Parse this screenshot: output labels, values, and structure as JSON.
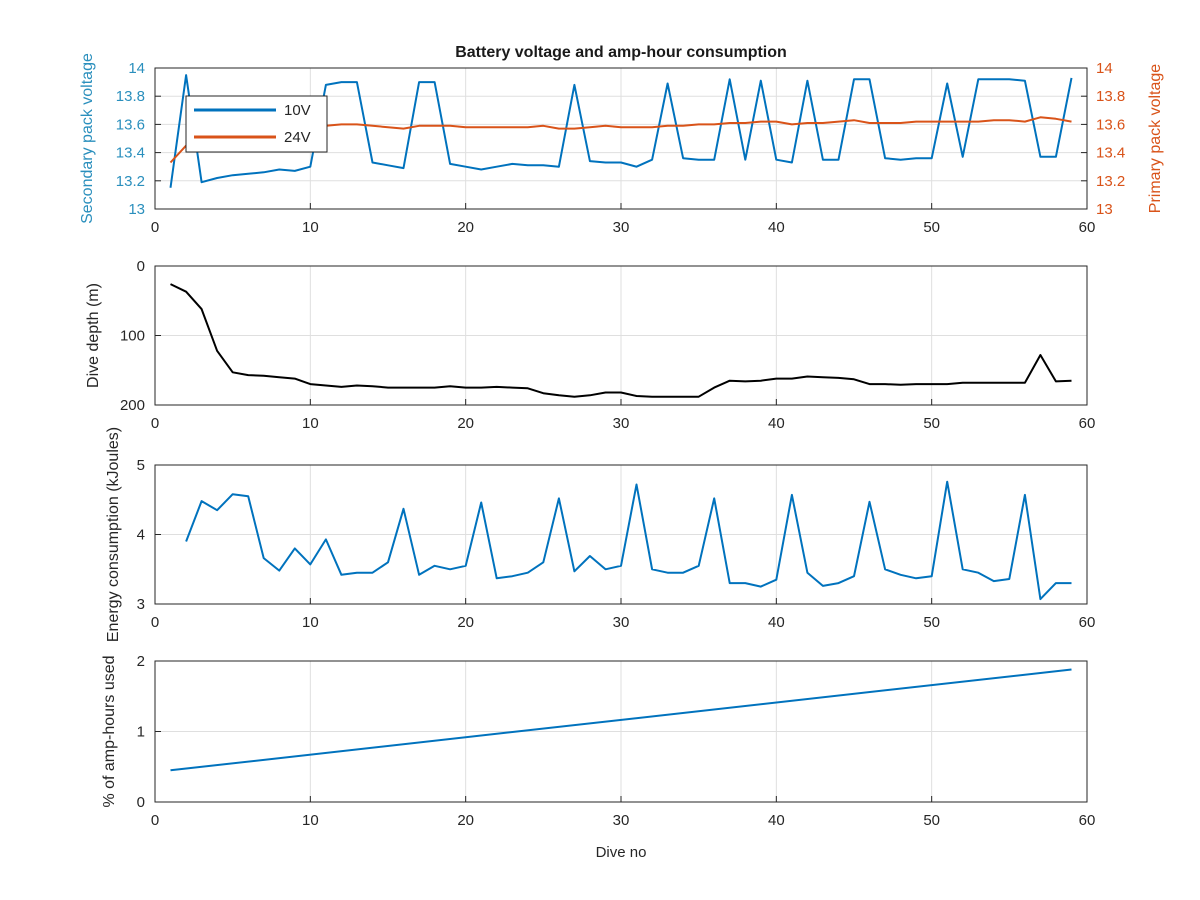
{
  "chart_data": [
    {
      "type": "line",
      "title": "Battery voltage and amp-hour consumption",
      "xlabel": "",
      "ylabel": "Secondary pack voltage",
      "y2label": "Primary pack voltage",
      "xlim": [
        0,
        60
      ],
      "ylim": [
        13,
        14
      ],
      "y2lim": [
        13,
        14
      ],
      "xticks": [
        "0",
        "10",
        "20",
        "30",
        "40",
        "50",
        "60"
      ],
      "yticks": [
        "13",
        "13.2",
        "13.4",
        "13.6",
        "13.8",
        "14"
      ],
      "y2ticks": [
        "13",
        "13.2",
        "13.4",
        "13.6",
        "13.8",
        "14"
      ],
      "grid": true,
      "legend": "top-left",
      "colors": {
        "left_axis": "#2a8fbd",
        "right_axis": "#d95319"
      },
      "series": [
        {
          "name": "10V",
          "axis": "left",
          "color": "#0072bd",
          "x": [
            1,
            2,
            3,
            4,
            5,
            6,
            7,
            8,
            9,
            10,
            11,
            12,
            13,
            14,
            15,
            16,
            17,
            18,
            19,
            20,
            21,
            22,
            23,
            24,
            25,
            26,
            27,
            28,
            29,
            30,
            31,
            32,
            33,
            34,
            35,
            36,
            37,
            38,
            39,
            40,
            41,
            42,
            43,
            44,
            45,
            46,
            47,
            48,
            49,
            50,
            51,
            52,
            53,
            54,
            55,
            56,
            57,
            58,
            59
          ],
          "y": [
            13.15,
            13.95,
            13.19,
            13.22,
            13.24,
            13.25,
            13.26,
            13.28,
            13.27,
            13.3,
            13.88,
            13.9,
            13.9,
            13.33,
            13.31,
            13.29,
            13.9,
            13.9,
            13.32,
            13.3,
            13.28,
            13.3,
            13.32,
            13.31,
            13.31,
            13.3,
            13.88,
            13.34,
            13.33,
            13.33,
            13.3,
            13.35,
            13.89,
            13.36,
            13.35,
            13.35,
            13.92,
            13.35,
            13.91,
            13.35,
            13.33,
            13.91,
            13.35,
            13.35,
            13.92,
            13.92,
            13.36,
            13.35,
            13.36,
            13.36,
            13.89,
            13.37,
            13.92,
            13.92,
            13.92,
            13.91,
            13.37,
            13.37,
            13.93
          ]
        },
        {
          "name": "24V",
          "axis": "right",
          "color": "#d95319",
          "x": [
            1,
            2,
            3,
            4,
            5,
            6,
            7,
            8,
            9,
            10,
            11,
            12,
            13,
            14,
            15,
            16,
            17,
            18,
            19,
            20,
            21,
            22,
            23,
            24,
            25,
            26,
            27,
            28,
            29,
            30,
            31,
            32,
            33,
            34,
            35,
            36,
            37,
            38,
            39,
            40,
            41,
            42,
            43,
            44,
            45,
            46,
            47,
            48,
            49,
            50,
            51,
            52,
            53,
            54,
            55,
            56,
            57,
            58,
            59
          ],
          "y": [
            13.33,
            13.45,
            13.52,
            13.55,
            13.56,
            13.57,
            13.57,
            13.58,
            13.58,
            13.58,
            13.59,
            13.6,
            13.6,
            13.59,
            13.58,
            13.57,
            13.59,
            13.59,
            13.59,
            13.58,
            13.58,
            13.58,
            13.58,
            13.58,
            13.59,
            13.57,
            13.57,
            13.58,
            13.59,
            13.58,
            13.58,
            13.58,
            13.59,
            13.59,
            13.6,
            13.6,
            13.61,
            13.61,
            13.62,
            13.62,
            13.6,
            13.61,
            13.61,
            13.62,
            13.63,
            13.61,
            13.61,
            13.61,
            13.62,
            13.62,
            13.62,
            13.62,
            13.62,
            13.63,
            13.63,
            13.62,
            13.65,
            13.64,
            13.62
          ]
        }
      ]
    },
    {
      "type": "line",
      "title": "",
      "xlabel": "",
      "ylabel": "Dive depth (m)",
      "xlim": [
        0,
        60
      ],
      "ylim": [
        0,
        200
      ],
      "y_reversed": true,
      "xticks": [
        "0",
        "10",
        "20",
        "30",
        "40",
        "50",
        "60"
      ],
      "yticks": [
        "0",
        "100",
        "200"
      ],
      "grid": true,
      "series": [
        {
          "color": "#000000",
          "x": [
            1,
            2,
            3,
            4,
            5,
            6,
            7,
            8,
            9,
            10,
            11,
            12,
            13,
            14,
            15,
            16,
            17,
            18,
            19,
            20,
            21,
            22,
            23,
            24,
            25,
            26,
            27,
            28,
            29,
            30,
            31,
            32,
            33,
            34,
            35,
            36,
            37,
            38,
            39,
            40,
            41,
            42,
            43,
            44,
            45,
            46,
            47,
            48,
            49,
            50,
            51,
            52,
            53,
            54,
            55,
            56,
            57,
            58,
            59
          ],
          "y": [
            26,
            37,
            62,
            122,
            153,
            157,
            158,
            160,
            162,
            170,
            172,
            174,
            172,
            173,
            175,
            175,
            175,
            175,
            173,
            175,
            175,
            174,
            175,
            176,
            183,
            186,
            188,
            186,
            182,
            182,
            187,
            188,
            188,
            188,
            188,
            175,
            165,
            166,
            165,
            162,
            162,
            159,
            160,
            161,
            163,
            170,
            170,
            171,
            170,
            170,
            170,
            168,
            168,
            168,
            168,
            168,
            128,
            166,
            165
          ]
        }
      ]
    },
    {
      "type": "line",
      "title": "",
      "xlabel": "",
      "ylabel": "Energy consumption (kJoules)",
      "xlim": [
        0,
        60
      ],
      "ylim": [
        3,
        5
      ],
      "xticks": [
        "0",
        "10",
        "20",
        "30",
        "40",
        "50",
        "60"
      ],
      "yticks": [
        "3",
        "4",
        "5"
      ],
      "grid": true,
      "series": [
        {
          "color": "#0072bd",
          "x": [
            2,
            3,
            4,
            5,
            6,
            7,
            8,
            9,
            10,
            11,
            12,
            13,
            14,
            15,
            16,
            17,
            18,
            19,
            20,
            21,
            22,
            23,
            24,
            25,
            26,
            27,
            28,
            29,
            30,
            31,
            32,
            33,
            34,
            35,
            36,
            37,
            38,
            39,
            40,
            41,
            42,
            43,
            44,
            45,
            46,
            47,
            48,
            49,
            50,
            51,
            52,
            53,
            54,
            55,
            56,
            57,
            58,
            59
          ],
          "y": [
            3.9,
            4.48,
            4.35,
            4.58,
            4.55,
            3.66,
            3.48,
            3.8,
            3.57,
            3.93,
            3.42,
            3.45,
            3.45,
            3.6,
            4.37,
            3.42,
            3.55,
            3.5,
            3.55,
            4.46,
            3.37,
            3.4,
            3.45,
            3.6,
            4.52,
            3.47,
            3.69,
            3.5,
            3.55,
            4.72,
            3.5,
            3.45,
            3.45,
            3.55,
            4.52,
            3.3,
            3.3,
            3.25,
            3.35,
            4.57,
            3.45,
            3.26,
            3.3,
            3.4,
            4.47,
            3.5,
            3.42,
            3.37,
            3.4,
            4.76,
            3.5,
            3.45,
            3.33,
            3.36,
            4.57,
            3.07,
            3.3,
            3.3
          ]
        }
      ]
    },
    {
      "type": "line",
      "title": "",
      "xlabel": "Dive no",
      "ylabel": "% of amp-hours used",
      "xlim": [
        0,
        60
      ],
      "ylim": [
        0,
        2
      ],
      "xticks": [
        "0",
        "10",
        "20",
        "30",
        "40",
        "50",
        "60"
      ],
      "yticks": [
        "0",
        "1",
        "2"
      ],
      "grid": true,
      "series": [
        {
          "color": "#0072bd",
          "x": [
            1,
            59
          ],
          "y": [
            0.45,
            1.88
          ]
        }
      ]
    }
  ]
}
